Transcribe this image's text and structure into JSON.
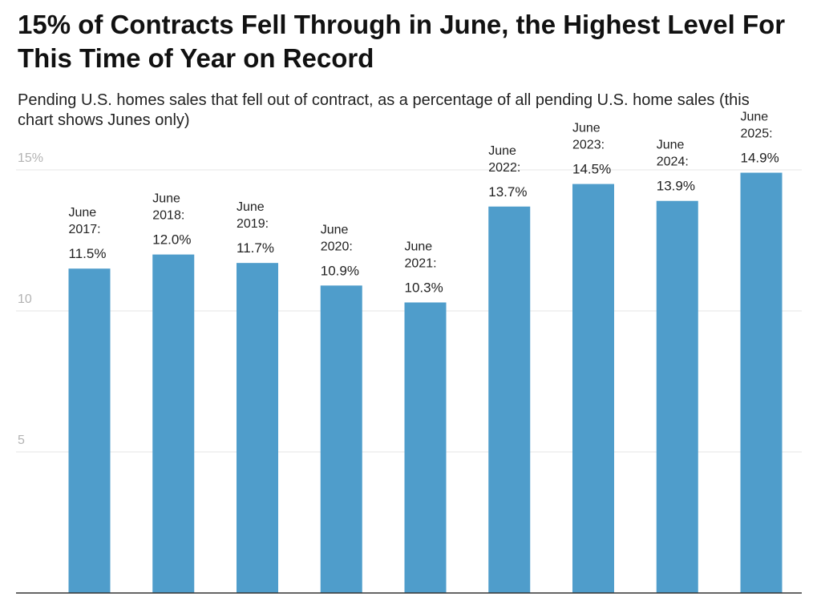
{
  "title": "15% of Contracts Fell Through in June, the Highest Level For This Time of Year on Record",
  "subtitle": "Pending U.S. homes sales that fell out of contract, as a percentage of all pending U.S. home sales (this chart shows Junes only)",
  "chart_data": {
    "type": "bar",
    "title": "15% of Contracts Fell Through in June, the Highest Level For This Time of Year on Record",
    "subtitle": "Pending U.S. homes sales that fell out of contract, as a percentage of all pending U.S. home sales (this chart shows Junes only)",
    "categories": [
      "June 2017",
      "June 2018",
      "June 2019",
      "June 2020",
      "June 2021",
      "June 2022",
      "June 2023",
      "June 2024",
      "June 2025"
    ],
    "values": [
      11.5,
      12.0,
      11.7,
      10.9,
      10.3,
      13.7,
      14.5,
      13.9,
      14.9
    ],
    "data_labels": [
      [
        "June",
        "2017:",
        "11.5%"
      ],
      [
        "June",
        "2018:",
        "12.0%"
      ],
      [
        "June",
        "2019:",
        "11.7%"
      ],
      [
        "June",
        "2020:",
        "10.9%"
      ],
      [
        "June",
        "2021:",
        "10.3%"
      ],
      [
        "June",
        "2022:",
        "13.7%"
      ],
      [
        "June",
        "2023:",
        "14.5%"
      ],
      [
        "June",
        "2024:",
        "13.9%"
      ],
      [
        "June",
        "2025:",
        "14.9%"
      ]
    ],
    "y_ticks": [
      {
        "value": 5,
        "label": "5"
      },
      {
        "value": 10,
        "label": "10"
      },
      {
        "value": 15,
        "label": "15%"
      }
    ],
    "ylim": [
      0,
      15
    ],
    "grid": true,
    "legend": "none",
    "bar_color": "#4f9dcb",
    "grid_color": "#e6e6e6",
    "axis_color": "#333333"
  }
}
